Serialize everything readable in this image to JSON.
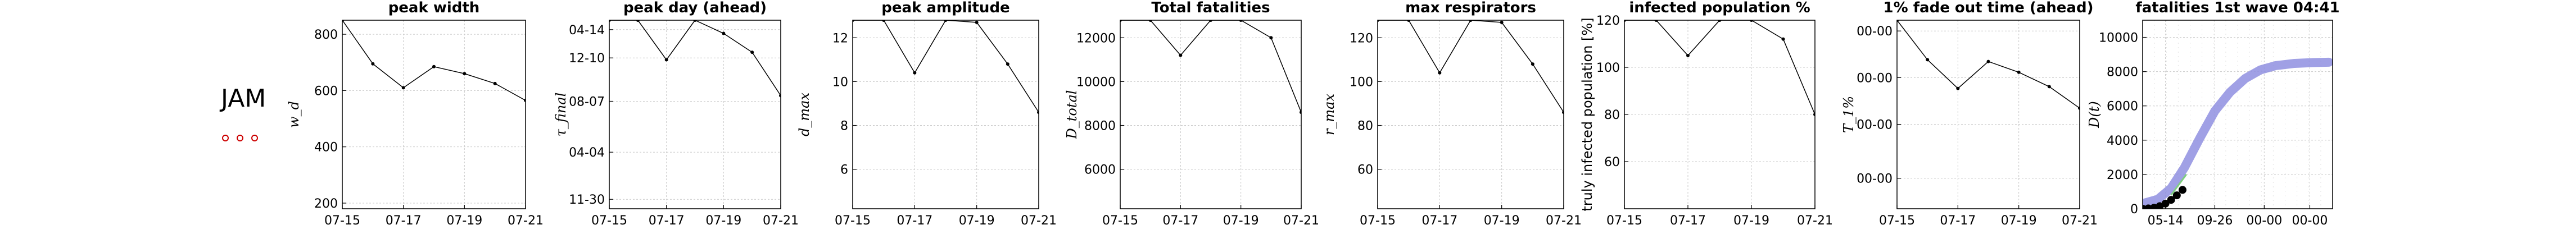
{
  "country": {
    "label": "JAM"
  },
  "legend_dots": {
    "count": 3,
    "color": "#cc0000"
  },
  "chart_data": [
    {
      "type": "line",
      "title": "peak width",
      "ylabel": "w_d",
      "x": [
        "07-15",
        "07-16",
        "07-17",
        "07-18",
        "07-19",
        "07-20",
        "07-21"
      ],
      "xticks": [
        "07-15",
        "07-17",
        "07-19",
        "07-21"
      ],
      "values": [
        850,
        695,
        610,
        685,
        660,
        625,
        565
      ],
      "ylim": [
        180,
        850
      ],
      "yticks": [
        {
          "v": 200,
          "label": "200"
        },
        {
          "v": 400,
          "label": "400"
        },
        {
          "v": 600,
          "label": "600"
        },
        {
          "v": 800,
          "label": "800"
        }
      ],
      "grid": true
    },
    {
      "type": "line",
      "title": "peak day (ahead)",
      "ylabel": "τ_final",
      "x": [
        "07-15",
        "07-16",
        "07-17",
        "07-18",
        "07-19",
        "07-20",
        "07-21"
      ],
      "xticks": [
        "07-15",
        "07-17",
        "07-19",
        "07-21"
      ],
      "values": [
        0.95,
        0.95,
        0.74,
        0.95,
        0.88,
        0.78,
        0.55
      ],
      "ylim": [
        -0.05,
        0.95
      ],
      "yticks": [
        {
          "v": 0.0,
          "label": "11-30"
        },
        {
          "v": 0.25,
          "label": "04-04"
        },
        {
          "v": 0.52,
          "label": "08-07"
        },
        {
          "v": 0.75,
          "label": "12-10"
        },
        {
          "v": 0.9,
          "label": "04-14"
        }
      ],
      "grid": true
    },
    {
      "type": "line",
      "title": "peak amplitude",
      "ylabel": "d_max",
      "x": [
        "07-15",
        "07-16",
        "07-17",
        "07-18",
        "07-19",
        "07-20",
        "07-21"
      ],
      "xticks": [
        "07-15",
        "07-17",
        "07-19",
        "07-21"
      ],
      "values": [
        12.8,
        12.8,
        10.4,
        12.8,
        12.7,
        10.8,
        8.6
      ],
      "ylim": [
        4.2,
        12.8
      ],
      "yticks": [
        {
          "v": 6,
          "label": "6"
        },
        {
          "v": 8,
          "label": "8"
        },
        {
          "v": 10,
          "label": "10"
        },
        {
          "v": 12,
          "label": "12"
        }
      ],
      "grid": true
    },
    {
      "type": "line",
      "title": "Total fatalities",
      "ylabel": "D_total",
      "x": [
        "07-15",
        "07-16",
        "07-17",
        "07-18",
        "07-19",
        "07-20",
        "07-21"
      ],
      "xticks": [
        "07-15",
        "07-17",
        "07-19",
        "07-21"
      ],
      "values": [
        12800,
        12800,
        11200,
        12800,
        12800,
        12000,
        8600
      ],
      "ylim": [
        4200,
        12800
      ],
      "yticks": [
        {
          "v": 6000,
          "label": "6000"
        },
        {
          "v": 8000,
          "label": "8000"
        },
        {
          "v": 10000,
          "label": "10000"
        },
        {
          "v": 12000,
          "label": "12000"
        }
      ],
      "grid": true
    },
    {
      "type": "line",
      "title": "max respirators",
      "ylabel": "r_max",
      "x": [
        "07-15",
        "07-16",
        "07-17",
        "07-18",
        "07-19",
        "07-20",
        "07-21"
      ],
      "xticks": [
        "07-15",
        "07-17",
        "07-19",
        "07-21"
      ],
      "values": [
        128,
        128,
        104,
        128,
        127,
        108,
        86
      ],
      "ylim": [
        42,
        128
      ],
      "yticks": [
        {
          "v": 60,
          "label": "60"
        },
        {
          "v": 80,
          "label": "80"
        },
        {
          "v": 100,
          "label": "100"
        },
        {
          "v": 120,
          "label": "120"
        }
      ],
      "grid": true
    },
    {
      "type": "line",
      "title": "infected population %",
      "ylabel": "truly infected population [%]",
      "x": [
        "07-15",
        "07-16",
        "07-17",
        "07-18",
        "07-19",
        "07-20",
        "07-21"
      ],
      "xticks": [
        "07-15",
        "07-17",
        "07-19",
        "07-21"
      ],
      "values": [
        120,
        120,
        105,
        120,
        120,
        112,
        80
      ],
      "ylim": [
        40,
        120
      ],
      "yticks": [
        {
          "v": 60,
          "label": "60"
        },
        {
          "v": 80,
          "label": "80"
        },
        {
          "v": 100,
          "label": "100"
        },
        {
          "v": 120,
          "label": "120"
        }
      ],
      "grid": true
    },
    {
      "type": "line",
      "title": "1% fade out time (ahead)",
      "ylabel": "T_1%",
      "x": [
        "07-15",
        "07-16",
        "07-17",
        "07-18",
        "07-19",
        "07-20",
        "07-21"
      ],
      "xticks": [
        "07-15",
        "07-17",
        "07-19",
        "07-21"
      ],
      "values": [
        1.0,
        0.78,
        0.62,
        0.77,
        0.71,
        0.63,
        0.51
      ],
      "ylim": [
        -0.05,
        1.0
      ],
      "yticks": [
        {
          "v": 0.12,
          "label": "00-00"
        },
        {
          "v": 0.42,
          "label": "00-00"
        },
        {
          "v": 0.68,
          "label": "00-00"
        },
        {
          "v": 0.94,
          "label": "00-00"
        }
      ],
      "grid": true
    },
    {
      "type": "scatter",
      "title": "fatalities 1st wave 04:41",
      "ylabel": "D(t)",
      "xticks": [
        {
          "v": 0.12,
          "label": "05-14"
        },
        {
          "v": 0.38,
          "label": "09-26"
        },
        {
          "v": 0.64,
          "label": "00-00"
        },
        {
          "v": 0.88,
          "label": "00-00"
        }
      ],
      "ylim": [
        0,
        11000
      ],
      "yticks": [
        {
          "v": 0,
          "label": "0"
        },
        {
          "v": 2000,
          "label": "2000"
        },
        {
          "v": 4000,
          "label": "4000"
        },
        {
          "v": 6000,
          "label": "6000"
        },
        {
          "v": 8000,
          "label": "8000"
        },
        {
          "v": 10000,
          "label": "10000"
        }
      ],
      "series": [
        {
          "kind": "fit-line",
          "color": "#8f8fe0",
          "x": [
            0.0,
            0.08,
            0.15,
            0.22,
            0.3,
            0.38,
            0.46,
            0.54,
            0.62,
            0.7,
            0.8,
            0.9,
            0.98
          ],
          "values": [
            300,
            550,
            1200,
            2400,
            4100,
            5700,
            6800,
            7600,
            8100,
            8350,
            8480,
            8530,
            8550
          ]
        },
        {
          "kind": "observed",
          "color": "#000000",
          "x": [
            0.0,
            0.03,
            0.06,
            0.09,
            0.12,
            0.15,
            0.18,
            0.21
          ],
          "values": [
            0,
            20,
            60,
            150,
            300,
            520,
            780,
            1100
          ]
        },
        {
          "kind": "trend",
          "color": "#7fcf7f",
          "x": [
            0.15,
            0.19,
            0.23
          ],
          "values": [
            800,
            1400,
            2000
          ]
        }
      ],
      "grid": true
    }
  ]
}
